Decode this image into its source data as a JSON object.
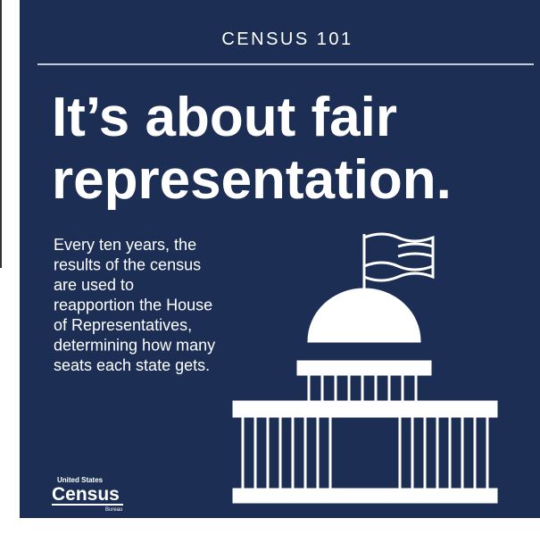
{
  "header": {
    "title": "CENSUS 101"
  },
  "headline": {
    "lines": [
      "It’s about fair",
      "representation."
    ]
  },
  "body": {
    "lines": [
      "Every ten years, the",
      "results of the census",
      "are used to",
      "reapportion the House",
      "of Representatives,",
      "determining how many",
      "seats each state gets."
    ]
  },
  "logo": {
    "top": "United States",
    "name": "Census",
    "bottom": "Bureau"
  }
}
